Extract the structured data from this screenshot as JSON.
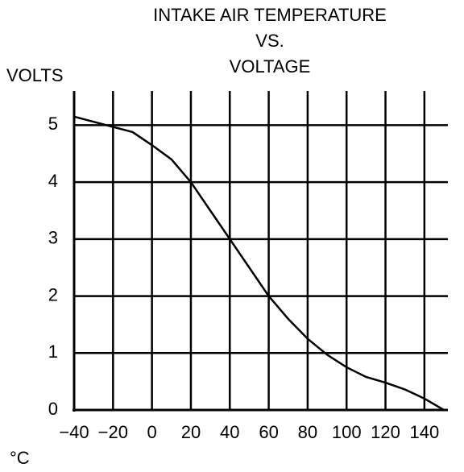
{
  "chart_data": {
    "type": "line",
    "title": [
      "INTAKE AIR TEMPERATURE",
      "VS.",
      "VOLTAGE"
    ],
    "y_label": "VOLTS",
    "x_label": "°C",
    "x": [
      -40,
      -30,
      -20,
      -10,
      0,
      10,
      20,
      30,
      40,
      50,
      60,
      70,
      80,
      90,
      100,
      110,
      120,
      130,
      140,
      150
    ],
    "series": [
      {
        "name": "Voltage",
        "color": "#000000",
        "values": [
          5.15,
          5.06,
          4.97,
          4.88,
          4.65,
          4.4,
          4.0,
          3.5,
          3.0,
          2.5,
          2.0,
          1.6,
          1.25,
          0.97,
          0.75,
          0.58,
          0.48,
          0.36,
          0.2,
          0.0
        ]
      }
    ],
    "xlim": [
      -40,
      150
    ],
    "ylim": [
      0,
      5.6
    ],
    "xticks": [
      {
        "value": -40,
        "label": "−40"
      },
      {
        "value": -20,
        "label": "−20"
      },
      0,
      20,
      40,
      60,
      80,
      100,
      120,
      140
    ],
    "yticks": [
      0,
      1,
      2,
      3,
      4,
      5
    ],
    "grid": true
  }
}
